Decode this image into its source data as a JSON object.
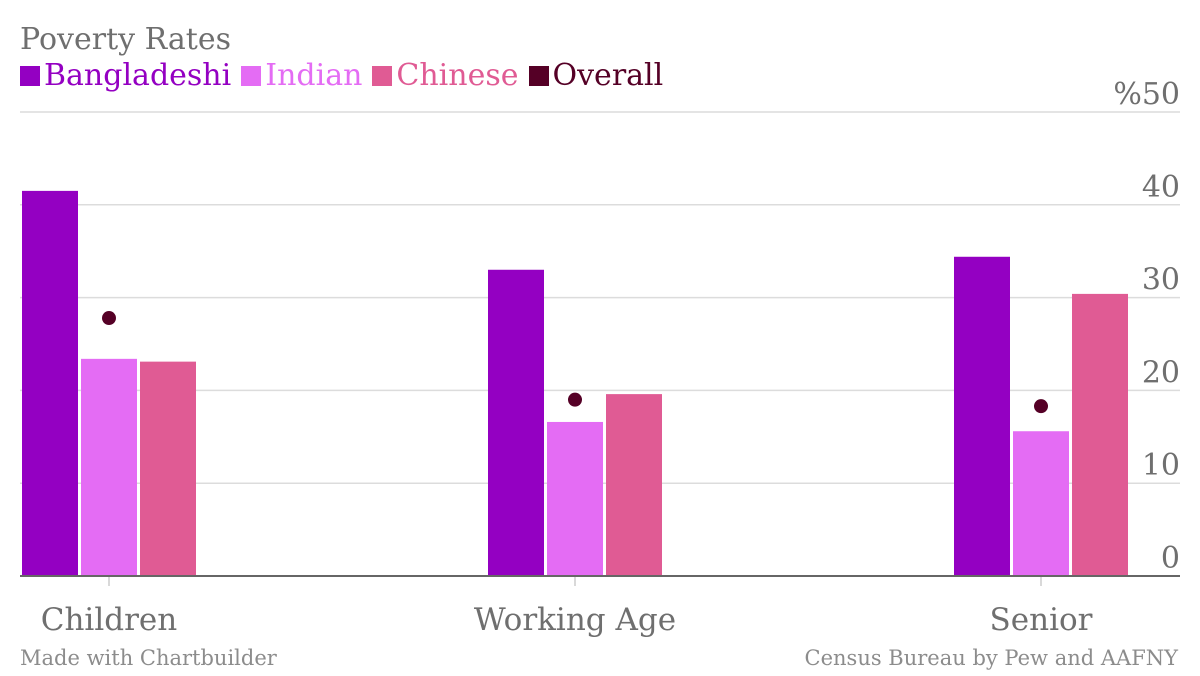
{
  "chart_data": {
    "type": "bar",
    "title": "Poverty Rates",
    "categories": [
      "Children",
      "Working Age",
      "Senior"
    ],
    "series": [
      {
        "name": "Bangladeshi",
        "kind": "bar",
        "color": "#9400c2",
        "values": [
          41.5,
          33,
          34.4
        ]
      },
      {
        "name": "Indian",
        "kind": "bar",
        "color": "#e46cf4",
        "values": [
          23.4,
          16.6,
          15.6
        ]
      },
      {
        "name": "Chinese",
        "kind": "bar",
        "color": "#e05b94",
        "values": [
          23.1,
          19.6,
          30.4
        ]
      },
      {
        "name": "Overall",
        "kind": "dot",
        "color": "#550026",
        "values": [
          27.8,
          19,
          18.3
        ]
      }
    ],
    "ylim": [
      0,
      50
    ],
    "yticks": [
      "0",
      "10",
      "20",
      "30",
      "40",
      "%50"
    ],
    "ylabel": "",
    "xlabel": "",
    "grid": true,
    "legend_position": "top-left"
  },
  "footer": {
    "left": "Made with Chartbuilder",
    "right": "Census Bureau by Pew and AAFNY"
  }
}
